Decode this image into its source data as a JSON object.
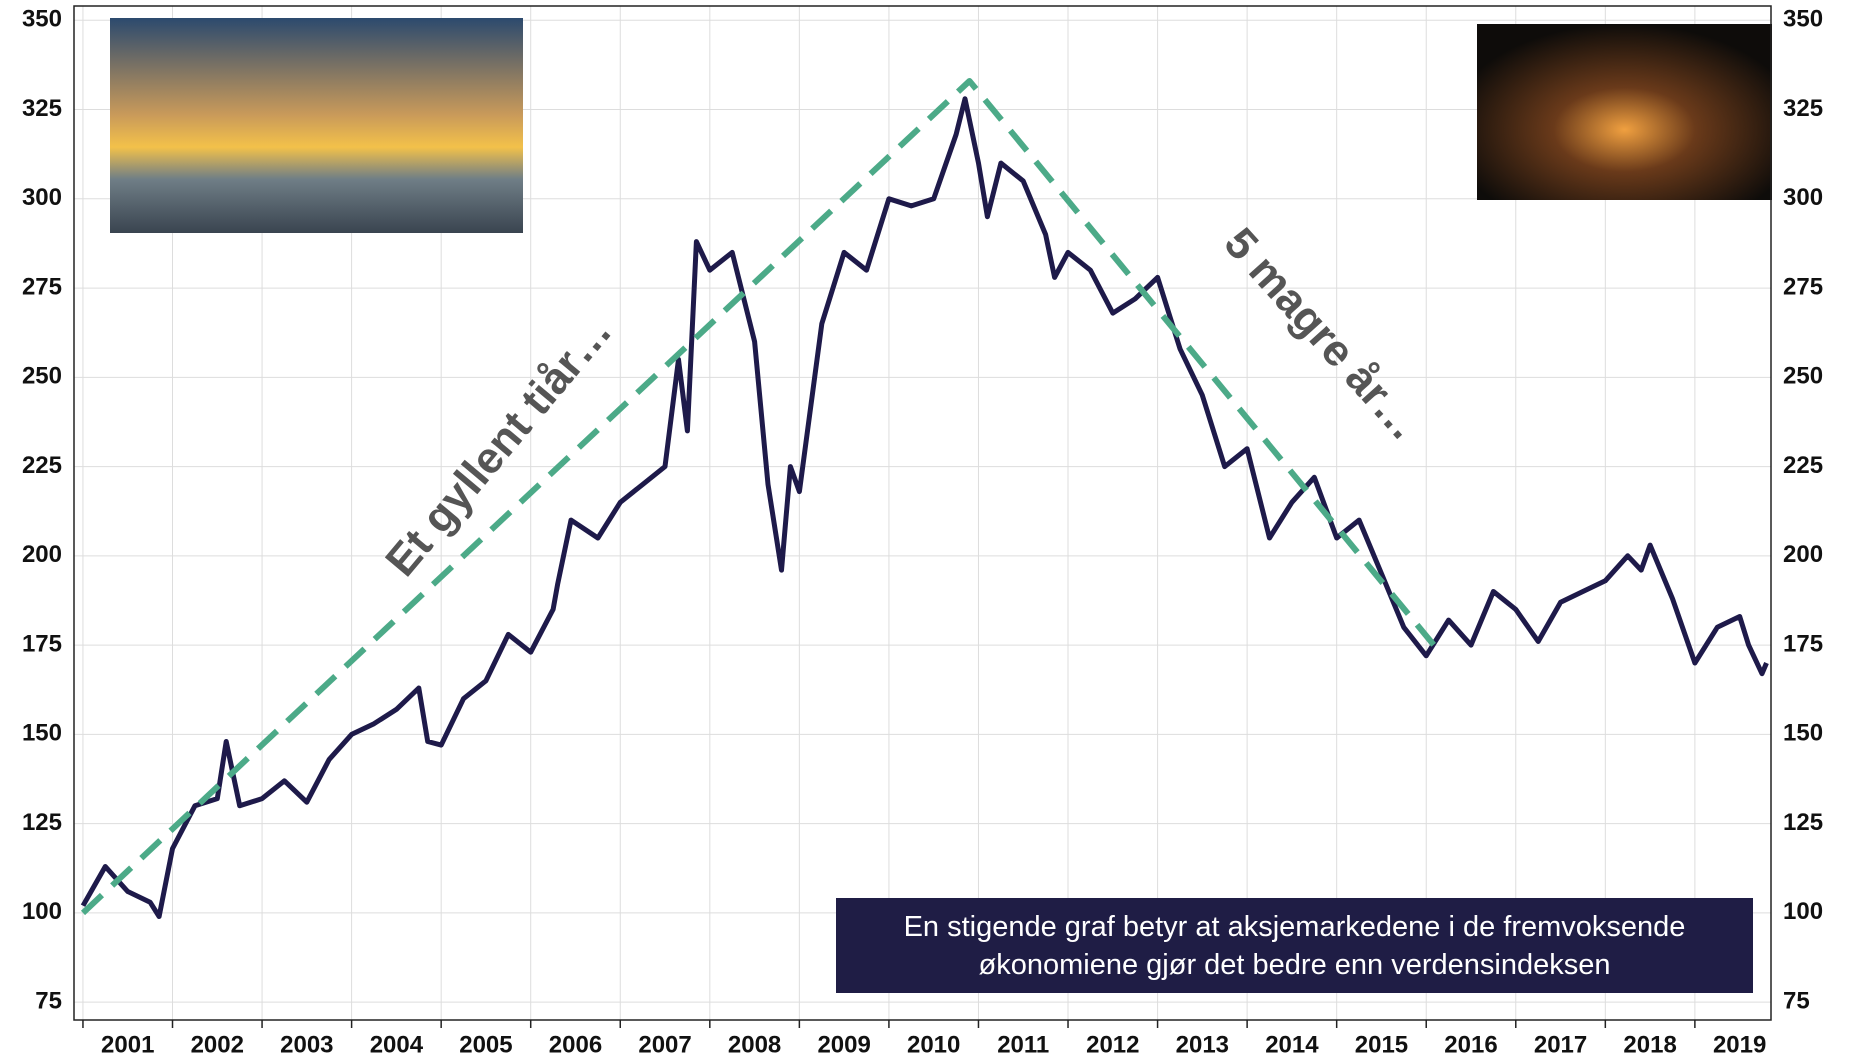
{
  "chart_data": {
    "type": "line",
    "annotations": [
      "Et gyllent tiår…",
      "5 magre år…"
    ],
    "note": "En stigende graf betyr at aksjemarkedene i de fremvoksende økonomiene gjør det bedre enn verdensindeksen",
    "xlim": [
      2000.9,
      2019.85
    ],
    "xticks": [
      {
        "value": 2001.5,
        "label": "2001"
      },
      {
        "value": 2002.5,
        "label": "2002"
      },
      {
        "value": 2003.5,
        "label": "2003"
      },
      {
        "value": 2004.5,
        "label": "2004"
      },
      {
        "value": 2005.5,
        "label": "2005"
      },
      {
        "value": 2006.5,
        "label": "2006"
      },
      {
        "value": 2007.5,
        "label": "2007"
      },
      {
        "value": 2008.5,
        "label": "2008"
      },
      {
        "value": 2009.5,
        "label": "2009"
      },
      {
        "value": 2010.5,
        "label": "2010"
      },
      {
        "value": 2011.5,
        "label": "2011"
      },
      {
        "value": 2012.5,
        "label": "2012"
      },
      {
        "value": 2013.5,
        "label": "2013"
      },
      {
        "value": 2014.5,
        "label": "2014"
      },
      {
        "value": 2015.5,
        "label": "2015"
      },
      {
        "value": 2016.5,
        "label": "2016"
      },
      {
        "value": 2017.5,
        "label": "2017"
      },
      {
        "value": 2018.5,
        "label": "2018"
      },
      {
        "value": 2019.5,
        "label": "2019"
      }
    ],
    "ylim": [
      70,
      354
    ],
    "yticks": [
      75,
      100,
      125,
      150,
      175,
      200,
      225,
      250,
      275,
      300,
      325,
      350
    ],
    "grid": true,
    "series": [
      {
        "color": "#1e1a4a",
        "line_style": "solid",
        "x": [
          2001.0,
          2001.25,
          2001.5,
          2001.75,
          2001.85,
          2002.0,
          2002.25,
          2002.5,
          2002.6,
          2002.75,
          2003.0,
          2003.25,
          2003.5,
          2003.75,
          2004.0,
          2004.25,
          2004.5,
          2004.75,
          2004.85,
          2005.0,
          2005.25,
          2005.5,
          2005.75,
          2006.0,
          2006.25,
          2006.3,
          2006.45,
          2006.75,
          2007.0,
          2007.25,
          2007.5,
          2007.65,
          2007.75,
          2007.85,
          2008.0,
          2008.25,
          2008.5,
          2008.65,
          2008.8,
          2008.9,
          2009.0,
          2009.25,
          2009.5,
          2009.75,
          2010.0,
          2010.25,
          2010.5,
          2010.75,
          2010.85,
          2011.0,
          2011.1,
          2011.25,
          2011.5,
          2011.75,
          2011.85,
          2012.0,
          2012.25,
          2012.5,
          2012.75,
          2013.0,
          2013.25,
          2013.5,
          2013.75,
          2014.0,
          2014.25,
          2014.5,
          2014.75,
          2015.0,
          2015.25,
          2015.5,
          2015.75,
          2016.0,
          2016.25,
          2016.5,
          2016.75,
          2017.0,
          2017.25,
          2017.5,
          2017.75,
          2018.0,
          2018.25,
          2018.4,
          2018.5,
          2018.75,
          2019.0,
          2019.25,
          2019.5,
          2019.6,
          2019.75,
          2019.8
        ],
        "values": [
          102,
          113,
          106,
          103,
          99,
          118,
          130,
          132,
          148,
          130,
          132,
          137,
          131,
          143,
          150,
          153,
          157,
          163,
          148,
          147,
          160,
          165,
          178,
          173,
          185,
          192,
          210,
          205,
          215,
          220,
          225,
          255,
          235,
          288,
          280,
          285,
          260,
          220,
          196,
          225,
          218,
          265,
          285,
          280,
          300,
          298,
          300,
          318,
          328,
          310,
          295,
          310,
          305,
          290,
          278,
          285,
          280,
          268,
          272,
          278,
          258,
          245,
          225,
          230,
          205,
          215,
          222,
          205,
          210,
          195,
          180,
          172,
          182,
          175,
          190,
          185,
          176,
          187,
          190,
          193,
          200,
          196,
          203,
          188,
          170,
          180,
          183,
          175,
          167,
          170
        ]
      },
      {
        "color": "#4caa88",
        "line_style": "dashed",
        "x": [
          2001.0,
          2010.9,
          2016.15
        ],
        "values": [
          100,
          333,
          173
        ]
      }
    ]
  }
}
